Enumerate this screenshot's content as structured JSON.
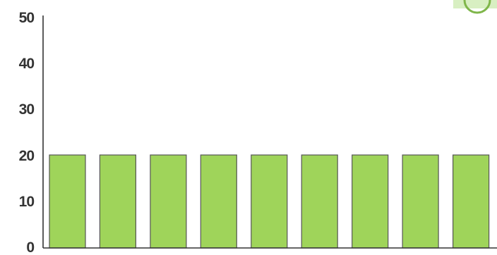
{
  "colors": {
    "bar_fill": "#9fd45a",
    "badge_fill": "#d8efc2",
    "badge_ring": "#7fb64a",
    "axis": "#333333"
  },
  "corner_badge": {
    "icon": "circle-badge-icon"
  },
  "chart_data": {
    "type": "bar",
    "categories": [
      "",
      "",
      "",
      "",
      "",
      "",
      "",
      "",
      ""
    ],
    "values": [
      20,
      20,
      20,
      20,
      20,
      20,
      20,
      20,
      20
    ],
    "title": "",
    "xlabel": "",
    "ylabel": "",
    "ylim": [
      0,
      50
    ],
    "yticks": [
      "0",
      "10",
      "20",
      "30",
      "40",
      "50"
    ],
    "grid": false
  }
}
